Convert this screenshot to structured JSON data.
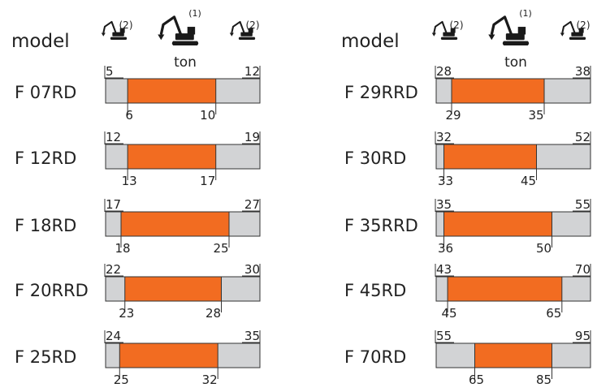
{
  "chart_data": {
    "type": "bar",
    "header": {
      "label": "model",
      "unit": "ton",
      "note_main": "(1)",
      "note_side": "(2)"
    },
    "colors": {
      "optimal": "#f26c21",
      "range": "#d2d3d5",
      "stroke": "#333333",
      "text": "#222222"
    },
    "columns": [
      {
        "models": [
          {
            "name": "F 07RD",
            "min": 5,
            "opt_min": 6,
            "opt_max": 10,
            "max": 12
          },
          {
            "name": "F 12RD",
            "min": 12,
            "opt_min": 13,
            "opt_max": 17,
            "max": 19
          },
          {
            "name": "F 18RD",
            "min": 17,
            "opt_min": 18,
            "opt_max": 25,
            "max": 27
          },
          {
            "name": "F 20RRD",
            "min": 22,
            "opt_min": 23,
            "opt_max": 28,
            "max": 30
          },
          {
            "name": "F 25RD",
            "min": 24,
            "opt_min": 25,
            "opt_max": 32,
            "max": 35
          }
        ]
      },
      {
        "models": [
          {
            "name": "F 29RRD",
            "min": 28,
            "opt_min": 29,
            "opt_max": 35,
            "max": 38
          },
          {
            "name": "F 30RD",
            "min": 32,
            "opt_min": 33,
            "opt_max": 45,
            "max": 52
          },
          {
            "name": "F 35RRD",
            "min": 35,
            "opt_min": 36,
            "opt_max": 50,
            "max": 55
          },
          {
            "name": "F 45RD",
            "min": 43,
            "opt_min": 45,
            "opt_max": 65,
            "max": 70
          },
          {
            "name": "F 70RD",
            "min": 55,
            "opt_min": 65,
            "opt_max": 85,
            "max": 95
          }
        ]
      }
    ]
  }
}
